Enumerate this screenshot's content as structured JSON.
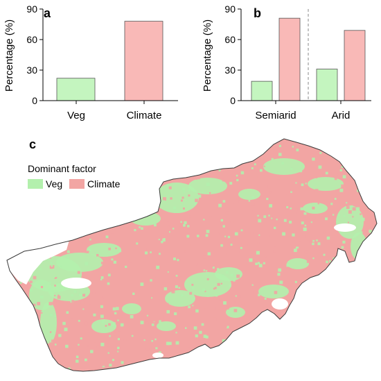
{
  "colors": {
    "veg": "#c4f5bf",
    "climate": "#f9b9b7",
    "veg_map": "#b3f0ad",
    "climate_map": "#f2a5a3",
    "axis": "#000000",
    "border": "#3a3a3a"
  },
  "chart_data": [
    {
      "panel": "a",
      "type": "bar",
      "categories": [
        "Veg",
        "Climate"
      ],
      "values": [
        22,
        78
      ],
      "ylabel": "Percentage (%)",
      "ylim": [
        0,
        90
      ],
      "yticks": [
        "0",
        "30",
        "60",
        "90"
      ],
      "series_colors": [
        "veg",
        "climate"
      ]
    },
    {
      "panel": "b",
      "type": "bar",
      "categories": [
        "Semiarid",
        "Arid"
      ],
      "series": [
        {
          "name": "Veg",
          "values": [
            19,
            31
          ]
        },
        {
          "name": "Climate",
          "values": [
            81,
            69
          ]
        }
      ],
      "ylabel": "Percentage (%)",
      "ylim": [
        0,
        90
      ],
      "yticks": [
        "0",
        "30",
        "60",
        "90"
      ]
    },
    {
      "panel": "c",
      "type": "map",
      "legend_title": "Dominant factor",
      "legend": [
        "Veg",
        "Climate"
      ]
    }
  ]
}
